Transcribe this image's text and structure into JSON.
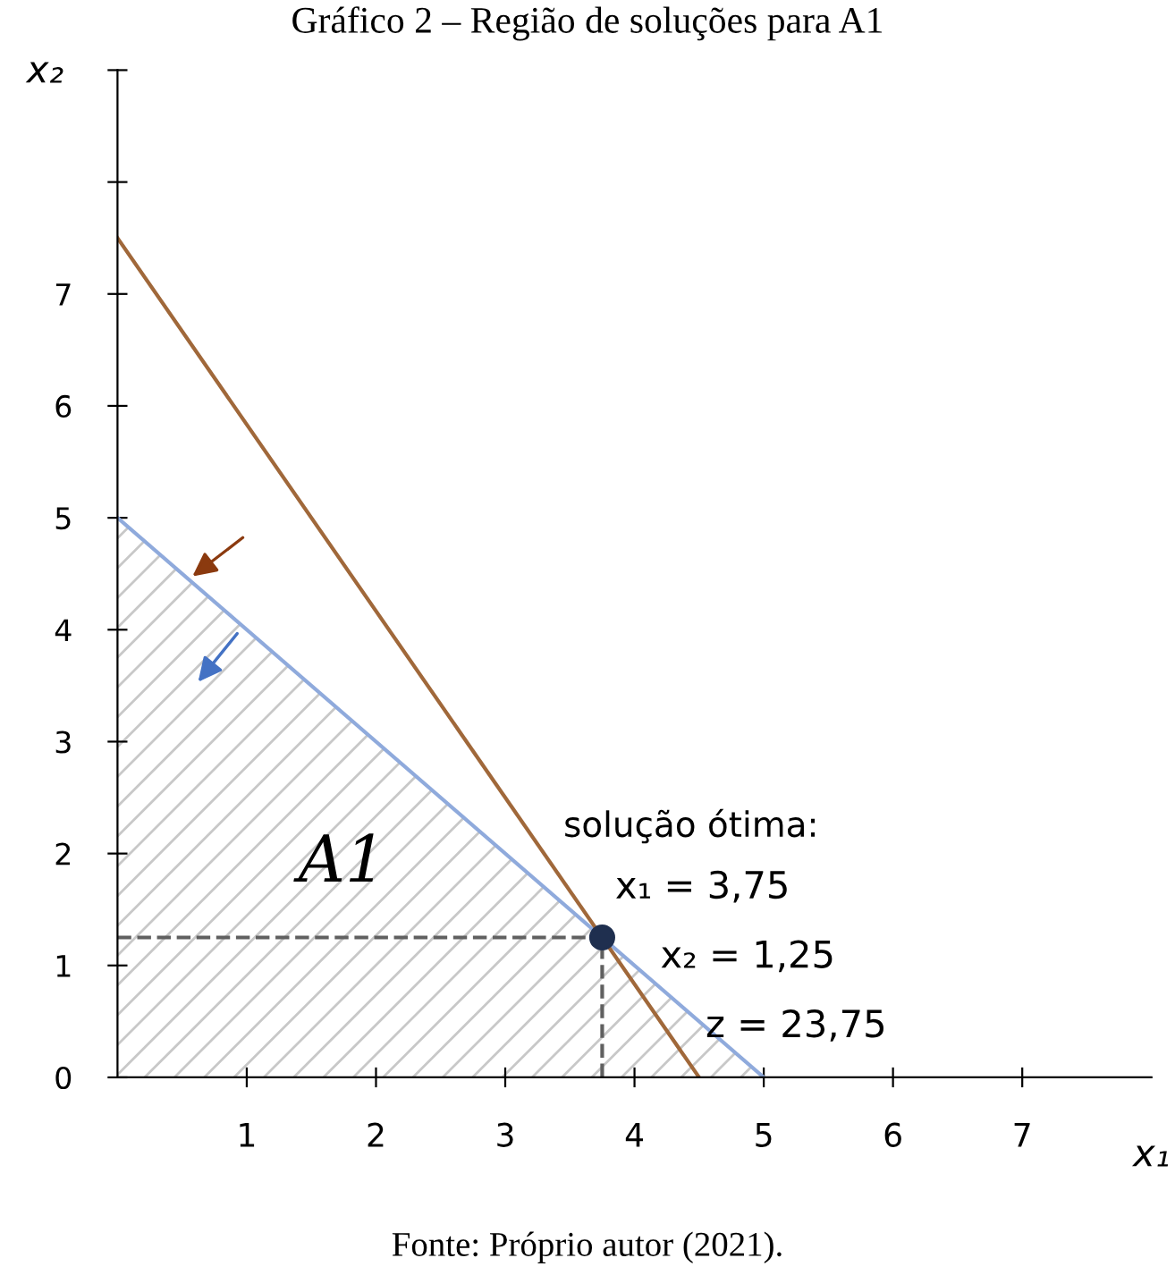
{
  "chart_data": {
    "type": "line",
    "title": "Gráfico 2 – Região de soluções para A1",
    "xlabel": "x₁",
    "ylabel": "x₂",
    "xlim": [
      0,
      8
    ],
    "ylim": [
      0,
      9
    ],
    "xticks": [
      1,
      2,
      3,
      4,
      5,
      6,
      7
    ],
    "yticks": [
      0,
      1,
      2,
      3,
      4,
      5,
      6,
      7,
      {
        "value": 8,
        "label": null
      },
      {
        "value": 9,
        "label": null
      }
    ],
    "grid": false,
    "legend": false,
    "marker": "none",
    "series": [
      {
        "type": "area",
        "color": "#8faadc",
        "x": [
          0,
          5
        ],
        "values": [
          5,
          0
        ]
      },
      {
        "color": "#a0683a",
        "x": [
          0,
          4.5
        ],
        "values": [
          7.5,
          0
        ],
        "line_style": "solid"
      },
      {
        "color": "#606060",
        "x": [
          0,
          3.75
        ],
        "values": [
          1.25,
          1.25
        ],
        "line_style": "dashed"
      },
      {
        "color": "#606060",
        "x": [
          3.75,
          3.75
        ],
        "values": [
          0,
          1.25
        ],
        "line_style": "dashed"
      },
      {
        "type": "scatter",
        "color": "#1f2f4f",
        "x": [
          3.75
        ],
        "values": [
          1.25
        ],
        "marker": "circle"
      }
    ],
    "annotations": [
      "A1",
      {
        "text": "solução ótima:",
        "x": 3.75,
        "y": 1.25
      },
      "x₁ = 3,75",
      "x₂ = 1,25",
      "z = 23,75",
      "Fonte: Próprio autor (2021)."
    ]
  }
}
